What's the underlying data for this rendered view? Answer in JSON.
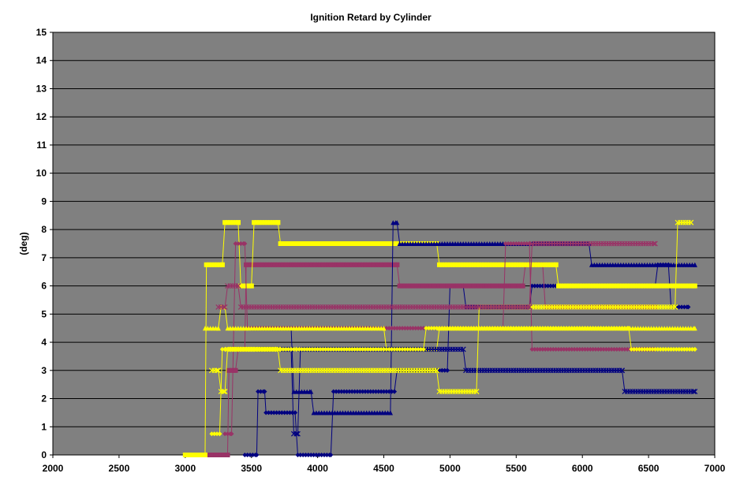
{
  "chart_data": {
    "type": "line",
    "title": "Ignition Retard by Cylinder",
    "xlabel": "",
    "ylabel": "(deg)",
    "xlim": [
      2000,
      7000
    ],
    "ylim": [
      0,
      15
    ],
    "x_ticks": [
      2000,
      2500,
      3000,
      3500,
      4000,
      4500,
      5000,
      5500,
      6000,
      6500,
      7000
    ],
    "y_ticks": [
      0,
      1,
      2,
      3,
      4,
      5,
      6,
      7,
      8,
      9,
      10,
      11,
      12,
      13,
      14,
      15
    ],
    "grid": true,
    "plot_background": "#808080",
    "legend": "none",
    "series": [
      {
        "color": "#000080",
        "marker": "diamond",
        "points": [
          [
            3450,
            0
          ],
          [
            3540,
            0
          ],
          [
            3550,
            2.25
          ],
          [
            3600,
            2.25
          ],
          [
            3610,
            1.5
          ],
          [
            3830,
            1.5
          ],
          [
            3850,
            0
          ],
          [
            4100,
            0
          ],
          [
            4120,
            2.25
          ],
          [
            4580,
            2.25
          ],
          [
            4600,
            3
          ],
          [
            4980,
            3
          ],
          [
            5000,
            6
          ],
          [
            5100,
            6
          ],
          [
            5120,
            5.25
          ],
          [
            5600,
            5.25
          ],
          [
            5620,
            6
          ],
          [
            6550,
            6
          ],
          [
            6570,
            6.75
          ],
          [
            6650,
            6.75
          ],
          [
            6670,
            5.25
          ],
          [
            6800,
            5.25
          ]
        ]
      },
      {
        "color": "#993366",
        "marker": "square",
        "points": [
          [
            3150,
            0
          ],
          [
            3320,
            0
          ],
          [
            3330,
            3
          ],
          [
            3380,
            3
          ],
          [
            3400,
            3.75
          ],
          [
            3450,
            3.75
          ],
          [
            3460,
            6.75
          ],
          [
            4600,
            6.75
          ],
          [
            4620,
            6
          ],
          [
            5550,
            6
          ],
          [
            5570,
            6.75
          ],
          [
            5700,
            6.75
          ],
          [
            5720,
            5.25
          ],
          [
            6550,
            5.25
          ]
        ]
      },
      {
        "color": "#ffff00",
        "marker": "square",
        "points": [
          [
            3000,
            0
          ],
          [
            3150,
            0
          ],
          [
            3160,
            6.75
          ],
          [
            3280,
            6.75
          ],
          [
            3300,
            8.25
          ],
          [
            3400,
            8.25
          ],
          [
            3420,
            6
          ],
          [
            3500,
            6
          ],
          [
            3520,
            8.25
          ],
          [
            3700,
            8.25
          ],
          [
            3720,
            7.5
          ],
          [
            4550,
            7.5
          ],
          [
            4570,
            7.5
          ],
          [
            4900,
            7.5
          ],
          [
            4920,
            6.75
          ],
          [
            5800,
            6.75
          ],
          [
            5820,
            6
          ],
          [
            6850,
            6
          ]
        ]
      },
      {
        "color": "#000080",
        "marker": "triangle",
        "points": [
          [
            3500,
            4.5
          ],
          [
            3800,
            4.5
          ],
          [
            3820,
            2.25
          ],
          [
            3950,
            2.25
          ],
          [
            3970,
            1.5
          ],
          [
            4550,
            1.5
          ],
          [
            4570,
            8.25
          ],
          [
            4600,
            8.25
          ],
          [
            4620,
            7.5
          ],
          [
            5500,
            7.5
          ],
          [
            5520,
            7.5
          ],
          [
            6050,
            7.5
          ],
          [
            6070,
            6.75
          ],
          [
            6850,
            6.75
          ]
        ]
      },
      {
        "color": "#993366",
        "marker": "diamond",
        "points": [
          [
            3300,
            0.75
          ],
          [
            3350,
            0.75
          ],
          [
            3380,
            7.5
          ],
          [
            3450,
            7.5
          ],
          [
            3470,
            4.5
          ],
          [
            4400,
            4.5
          ],
          [
            4420,
            4.5
          ],
          [
            5400,
            4.5
          ],
          [
            5420,
            7.5
          ],
          [
            5600,
            7.5
          ],
          [
            5620,
            3.75
          ],
          [
            6550,
            3.75
          ]
        ]
      },
      {
        "color": "#ffff00",
        "marker": "triangle",
        "points": [
          [
            3150,
            4.5
          ],
          [
            3250,
            4.5
          ],
          [
            3270,
            5.25
          ],
          [
            3300,
            5.25
          ],
          [
            3320,
            4.5
          ],
          [
            4500,
            4.5
          ],
          [
            4520,
            3.75
          ],
          [
            4900,
            3.75
          ],
          [
            4920,
            4.5
          ],
          [
            6300,
            4.5
          ],
          [
            6320,
            4.5
          ],
          [
            6850,
            4.5
          ]
        ]
      },
      {
        "color": "#000080",
        "marker": "x",
        "points": [
          [
            3550,
            3.75
          ],
          [
            3800,
            3.75
          ],
          [
            3820,
            0.75
          ],
          [
            3850,
            0.75
          ],
          [
            3870,
            3.75
          ],
          [
            4500,
            3.75
          ],
          [
            4520,
            3.75
          ],
          [
            5100,
            3.75
          ],
          [
            5120,
            3
          ],
          [
            6300,
            3
          ],
          [
            6320,
            2.25
          ],
          [
            6850,
            2.25
          ]
        ]
      },
      {
        "color": "#ffff00",
        "marker": "x",
        "points": [
          [
            3200,
            3
          ],
          [
            3250,
            3
          ],
          [
            3270,
            2.25
          ],
          [
            3300,
            2.25
          ],
          [
            3320,
            3.75
          ],
          [
            3700,
            3.75
          ],
          [
            3720,
            3
          ],
          [
            4900,
            3
          ],
          [
            4920,
            2.25
          ],
          [
            5200,
            2.25
          ],
          [
            5220,
            5.25
          ],
          [
            6700,
            5.25
          ],
          [
            6720,
            8.25
          ],
          [
            6820,
            8.25
          ]
        ]
      },
      {
        "color": "#ffff00",
        "marker": "diamond",
        "points": [
          [
            3200,
            0.75
          ],
          [
            3260,
            0.75
          ],
          [
            3280,
            3.75
          ],
          [
            3700,
            3.75
          ],
          [
            3720,
            3.75
          ],
          [
            4800,
            3.75
          ],
          [
            4820,
            4.5
          ],
          [
            6350,
            4.5
          ],
          [
            6370,
            3.75
          ],
          [
            6850,
            3.75
          ]
        ]
      },
      {
        "color": "#993366",
        "marker": "x",
        "points": [
          [
            3250,
            5.25
          ],
          [
            3300,
            5.25
          ],
          [
            3320,
            6
          ],
          [
            3400,
            6
          ],
          [
            3420,
            5.25
          ],
          [
            5600,
            5.25
          ],
          [
            5620,
            7.5
          ],
          [
            6550,
            7.5
          ]
        ]
      }
    ]
  }
}
